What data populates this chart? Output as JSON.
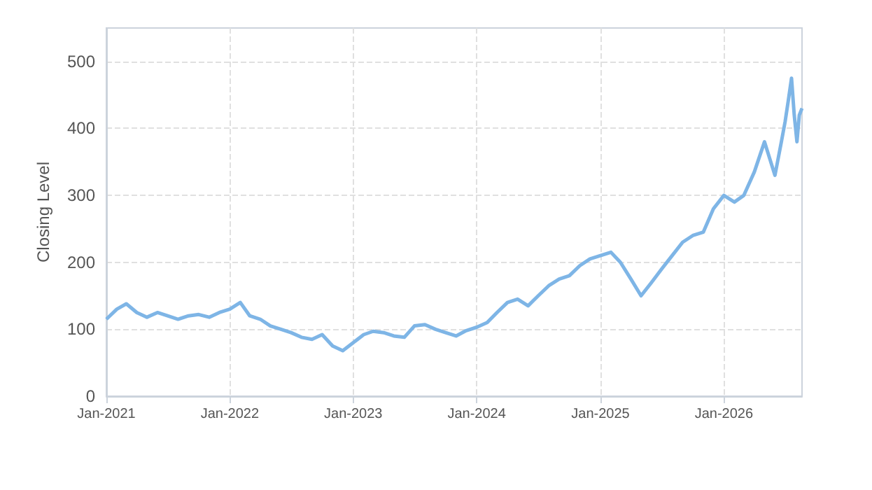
{
  "chart_data": {
    "type": "line",
    "ylabel": "Closing Level",
    "x": [
      "2021-01",
      "2021-02",
      "2021-03",
      "2021-04",
      "2021-05",
      "2021-06",
      "2021-07",
      "2021-08",
      "2021-09",
      "2021-10",
      "2021-11",
      "2021-12",
      "2022-01",
      "2022-02",
      "2022-03",
      "2022-04",
      "2022-05",
      "2022-06",
      "2022-07",
      "2022-08",
      "2022-09",
      "2022-10",
      "2022-11",
      "2022-12",
      "2023-01",
      "2023-02",
      "2023-03",
      "2023-04",
      "2023-05",
      "2023-06",
      "2023-07",
      "2023-08",
      "2023-09",
      "2023-10",
      "2023-11",
      "2023-12",
      "2024-01",
      "2024-02",
      "2024-03",
      "2024-04",
      "2024-05",
      "2024-06",
      "2024-07",
      "2024-08",
      "2024-09",
      "2024-10",
      "2024-11",
      "2024-12",
      "2025-01",
      "2025-02",
      "2025-03",
      "2025-04",
      "2025-05",
      "2025-06",
      "2025-07",
      "2025-08",
      "2025-09",
      "2025-10",
      "2025-11",
      "2025-12",
      "2026-01",
      "2026-02",
      "2026-03",
      "2026-04",
      "2026-05",
      "2026-06",
      "2026-06-20",
      "2026-07",
      "2026-07-10",
      "2026-07-20",
      "2026-07-28",
      "2026-08-05",
      "2026-08-12",
      "2026-08-20"
    ],
    "series": [
      {
        "color": "#7eb5e6",
        "values": [
          115,
          130,
          138,
          125,
          118,
          125,
          120,
          115,
          120,
          122,
          118,
          125,
          130,
          140,
          120,
          115,
          105,
          100,
          95,
          88,
          85,
          92,
          75,
          68,
          80,
          92,
          97,
          95,
          90,
          88,
          105,
          107,
          100,
          95,
          90,
          98,
          103,
          110,
          125,
          140,
          145,
          135,
          150,
          165,
          175,
          180,
          195,
          205,
          210,
          215,
          200,
          175,
          150,
          170,
          190,
          210,
          230,
          240,
          245,
          280,
          300,
          290,
          300,
          335,
          380,
          330,
          380,
          410,
          440,
          475,
          420,
          380,
          420,
          430
        ]
      }
    ],
    "xlim": [
      "2021-01",
      "2026-08-20"
    ],
    "xticks": [
      {
        "value": "2021-01",
        "label": "Jan-2021"
      },
      {
        "value": "2022-01",
        "label": "Jan-2022"
      },
      {
        "value": "2023-01",
        "label": "Jan-2023"
      },
      {
        "value": "2024-01",
        "label": "Jan-2024"
      },
      {
        "value": "2025-01",
        "label": "Jan-2025"
      },
      {
        "value": "2026-01",
        "label": "Jan-2026"
      }
    ],
    "ylim": [
      0,
      550
    ],
    "yticks": [
      0,
      100,
      200,
      300,
      400,
      500
    ],
    "grid": true,
    "marker": "none",
    "line_style": "solid"
  }
}
